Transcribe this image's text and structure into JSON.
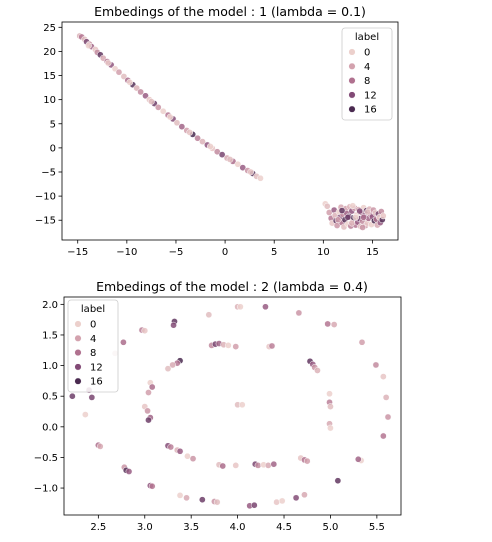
{
  "chart_data": [
    {
      "type": "scatter",
      "title": "Embedings of the model : 1 (lambda = 0.1)",
      "xlabel": "",
      "ylabel": "",
      "xlim": [
        -16.6,
        17.6
      ],
      "ylim": [
        -19.1,
        26.1
      ],
      "xticks": [
        -15,
        -10,
        -5,
        0,
        5,
        10,
        15
      ],
      "xtick_labels": [
        "−15",
        "−10",
        "−5",
        "0",
        "5",
        "10",
        "15"
      ],
      "yticks": [
        -15,
        -10,
        -5,
        0,
        5,
        10,
        15,
        20,
        25
      ],
      "ytick_labels": [
        "−15",
        "−10",
        "−5",
        "0",
        "5",
        "10",
        "15",
        "20",
        "25"
      ],
      "grid": false,
      "legend": {
        "title": "label",
        "position": "top-right",
        "entries": [
          {
            "label": "0",
            "color": "#ecd0cc"
          },
          {
            "label": "4",
            "color": "#d3a2ae"
          },
          {
            "label": "8",
            "color": "#b0718f"
          },
          {
            "label": "12",
            "color": "#824a76"
          },
          {
            "label": "16",
            "color": "#4a2a50"
          }
        ]
      },
      "hue_range": [
        0,
        19
      ],
      "points": [
        [
          -14.8,
          23.2,
          3
        ],
        [
          -14.6,
          23.0,
          9
        ],
        [
          -14.3,
          22.5,
          2
        ],
        [
          -14.1,
          22.0,
          15
        ],
        [
          -13.8,
          21.5,
          6
        ],
        [
          -13.6,
          21.0,
          11
        ],
        [
          -13.2,
          20.4,
          1
        ],
        [
          -13.0,
          19.8,
          7
        ],
        [
          -12.7,
          19.3,
          17
        ],
        [
          -12.4,
          18.6,
          4
        ],
        [
          -12.0,
          17.9,
          9
        ],
        [
          -11.6,
          17.2,
          13
        ],
        [
          -11.2,
          16.4,
          0
        ],
        [
          -10.8,
          15.7,
          5
        ],
        [
          -10.3,
          14.8,
          2
        ],
        [
          -9.9,
          14.0,
          10
        ],
        [
          -9.4,
          13.1,
          18
        ],
        [
          -9.0,
          12.4,
          3
        ],
        [
          -8.6,
          11.6,
          7
        ],
        [
          -8.1,
          10.8,
          12
        ],
        [
          -7.7,
          10.0,
          1
        ],
        [
          -7.2,
          9.2,
          16
        ],
        [
          -6.8,
          8.4,
          6
        ],
        [
          -6.3,
          7.6,
          0
        ],
        [
          -5.8,
          6.8,
          9
        ],
        [
          -5.3,
          6.0,
          14
        ],
        [
          -4.9,
          5.2,
          2
        ],
        [
          -4.4,
          4.4,
          11
        ],
        [
          -3.9,
          3.6,
          5
        ],
        [
          -3.3,
          2.8,
          19
        ],
        [
          -2.8,
          2.0,
          8
        ],
        [
          -2.3,
          1.3,
          3
        ],
        [
          -1.8,
          0.6,
          13
        ],
        [
          -1.3,
          -0.1,
          1
        ],
        [
          -0.8,
          -0.8,
          7
        ],
        [
          -0.3,
          -1.4,
          15
        ],
        [
          0.2,
          -2.1,
          4
        ],
        [
          0.8,
          -2.8,
          10
        ],
        [
          1.3,
          -3.4,
          0
        ],
        [
          1.8,
          -4.1,
          12
        ],
        [
          2.3,
          -4.7,
          6
        ],
        [
          2.8,
          -5.3,
          18
        ],
        [
          3.2,
          -5.9,
          2
        ],
        [
          3.6,
          -6.3,
          0
        ],
        [
          -13.9,
          21.2,
          0
        ],
        [
          -11.9,
          17.6,
          1
        ],
        [
          -9.7,
          13.6,
          0
        ],
        [
          -7.5,
          9.6,
          2
        ],
        [
          -5.6,
          6.4,
          0
        ],
        [
          -3.6,
          3.2,
          1
        ],
        [
          -1.5,
          0.3,
          0
        ],
        [
          0.5,
          -2.4,
          2
        ],
        [
          2.6,
          -5.0,
          1
        ],
        [
          10.2,
          -11.6,
          0
        ],
        [
          10.4,
          -12.1,
          2
        ],
        [
          10.6,
          -13.4,
          5
        ],
        [
          10.8,
          -14.6,
          9
        ],
        [
          10.9,
          -15.6,
          1
        ],
        [
          11.1,
          -12.9,
          12
        ],
        [
          11.2,
          -14.0,
          3
        ],
        [
          11.3,
          -15.1,
          17
        ],
        [
          11.4,
          -16.1,
          6
        ],
        [
          11.6,
          -13.3,
          0
        ],
        [
          11.7,
          -14.4,
          14
        ],
        [
          11.8,
          -12.3,
          4
        ],
        [
          11.9,
          -15.5,
          10
        ],
        [
          12.0,
          -13.8,
          7
        ],
        [
          12.1,
          -16.4,
          2
        ],
        [
          12.2,
          -14.9,
          18
        ],
        [
          12.3,
          -12.6,
          5
        ],
        [
          12.4,
          -13.6,
          11
        ],
        [
          12.5,
          -15.8,
          0
        ],
        [
          12.6,
          -14.2,
          15
        ],
        [
          12.7,
          -12.2,
          3
        ],
        [
          12.8,
          -16.2,
          8
        ],
        [
          12.9,
          -13.1,
          13
        ],
        [
          13.0,
          -15.0,
          1
        ],
        [
          13.1,
          -14.5,
          19
        ],
        [
          13.2,
          -12.5,
          6
        ],
        [
          13.3,
          -16.0,
          9
        ],
        [
          13.4,
          -13.9,
          0
        ],
        [
          13.5,
          -15.4,
          12
        ],
        [
          13.6,
          -12.8,
          4
        ],
        [
          13.7,
          -14.7,
          16
        ],
        [
          13.8,
          -16.3,
          2
        ],
        [
          13.9,
          -13.4,
          10
        ],
        [
          14.0,
          -15.2,
          7
        ],
        [
          14.1,
          -12.4,
          0
        ],
        [
          14.2,
          -14.1,
          14
        ],
        [
          14.3,
          -16.1,
          5
        ],
        [
          14.4,
          -13.0,
          17
        ],
        [
          14.5,
          -15.6,
          1
        ],
        [
          14.6,
          -14.6,
          11
        ],
        [
          14.7,
          -12.7,
          3
        ],
        [
          14.8,
          -13.8,
          8
        ],
        [
          14.9,
          -15.9,
          0
        ],
        [
          15.0,
          -14.3,
          13
        ],
        [
          15.1,
          -12.9,
          6
        ],
        [
          15.2,
          -15.1,
          19
        ],
        [
          15.3,
          -13.5,
          2
        ],
        [
          15.4,
          -14.8,
          9
        ],
        [
          15.5,
          -16.0,
          4
        ],
        [
          15.6,
          -13.7,
          15
        ],
        [
          15.7,
          -14.4,
          0
        ],
        [
          15.8,
          -15.5,
          12
        ],
        [
          15.9,
          -13.2,
          7
        ],
        [
          16.0,
          -14.9,
          18
        ],
        [
          16.1,
          -14.1,
          1
        ],
        [
          12.5,
          -14.4,
          16
        ],
        [
          13.3,
          -14.4,
          0
        ],
        [
          14.1,
          -14.4,
          10
        ],
        [
          11.5,
          -14.9,
          5
        ],
        [
          12.9,
          -15.6,
          3
        ],
        [
          13.7,
          -13.1,
          14
        ],
        [
          14.5,
          -13.3,
          2
        ],
        [
          11.9,
          -13.0,
          17
        ],
        [
          13.0,
          -12.0,
          0
        ],
        [
          14.0,
          -16.5,
          6
        ]
      ]
    },
    {
      "type": "scatter",
      "title": "Embedings of the model : 2 (lambda = 0.4)",
      "xlabel": "",
      "ylabel": "",
      "xlim": [
        2.13,
        5.76
      ],
      "ylim": [
        -1.44,
        2.12
      ],
      "xticks": [
        2.5,
        3.0,
        3.5,
        4.0,
        4.5,
        5.0,
        5.5
      ],
      "xtick_labels": [
        "2.5",
        "3.0",
        "3.5",
        "4.0",
        "4.5",
        "5.0",
        "5.5"
      ],
      "yticks": [
        -1.0,
        -0.5,
        0.0,
        0.5,
        1.0,
        1.5,
        2.0
      ],
      "ytick_labels": [
        "−1.0",
        "−0.5",
        "0.0",
        "0.5",
        "1.0",
        "1.5",
        "2.0"
      ],
      "grid": false,
      "legend": {
        "title": "label",
        "position": "top-left",
        "entries": [
          {
            "label": "0",
            "color": "#ecd0cc"
          },
          {
            "label": "4",
            "color": "#d3a2ae"
          },
          {
            "label": "8",
            "color": "#b0718f"
          },
          {
            "label": "12",
            "color": "#824a76"
          },
          {
            "label": "16",
            "color": "#4a2a50"
          }
        ]
      },
      "hue_range": [
        0,
        19
      ],
      "points": [
        [
          4.0,
          1.96,
          3
        ],
        [
          4.03,
          1.96,
          0
        ],
        [
          4.3,
          1.96,
          12
        ],
        [
          4.66,
          1.86,
          6
        ],
        [
          3.69,
          1.83,
          2
        ],
        [
          4.97,
          1.68,
          9
        ],
        [
          5.04,
          1.67,
          4
        ],
        [
          3.32,
          1.72,
          17
        ],
        [
          3.31,
          1.66,
          14
        ],
        [
          2.97,
          1.58,
          8
        ],
        [
          3.0,
          1.57,
          1
        ],
        [
          5.34,
          1.38,
          5
        ],
        [
          2.77,
          1.38,
          10
        ],
        [
          2.68,
          1.2,
          2
        ],
        [
          5.49,
          1.01,
          7
        ],
        [
          5.57,
          0.82,
          1
        ],
        [
          2.4,
          0.6,
          13
        ],
        [
          2.22,
          0.5,
          16
        ],
        [
          2.43,
          0.48,
          15
        ],
        [
          5.6,
          0.48,
          3
        ],
        [
          5.62,
          0.16,
          6
        ],
        [
          2.36,
          0.2,
          0
        ],
        [
          5.57,
          -0.15,
          9
        ],
        [
          2.5,
          -0.3,
          10
        ],
        [
          2.52,
          -0.32,
          4
        ],
        [
          5.33,
          -0.55,
          0
        ],
        [
          5.3,
          -0.53,
          11
        ],
        [
          2.78,
          -0.66,
          6
        ],
        [
          2.8,
          -0.71,
          18
        ],
        [
          2.83,
          -0.73,
          12
        ],
        [
          5.08,
          -0.88,
          17
        ],
        [
          3.06,
          -0.96,
          13
        ],
        [
          3.08,
          -0.97,
          9
        ],
        [
          3.38,
          -1.12,
          0
        ],
        [
          3.45,
          -1.16,
          4
        ],
        [
          3.62,
          -1.19,
          16
        ],
        [
          3.75,
          -1.22,
          6
        ],
        [
          3.78,
          -1.23,
          2
        ],
        [
          4.13,
          -1.29,
          12
        ],
        [
          4.18,
          -1.28,
          15
        ],
        [
          4.42,
          -1.23,
          1
        ],
        [
          4.48,
          -1.21,
          0
        ],
        [
          4.63,
          -1.16,
          14
        ],
        [
          4.72,
          -1.11,
          4
        ],
        [
          3.72,
          1.33,
          7
        ],
        [
          3.76,
          1.35,
          15
        ],
        [
          3.8,
          1.36,
          11
        ],
        [
          3.85,
          1.34,
          3
        ],
        [
          3.9,
          1.33,
          0
        ],
        [
          3.98,
          1.31,
          5
        ],
        [
          4.34,
          1.31,
          1
        ],
        [
          4.37,
          1.32,
          8
        ],
        [
          3.38,
          1.08,
          19
        ],
        [
          3.35,
          1.04,
          9
        ],
        [
          3.3,
          1.01,
          4
        ],
        [
          3.25,
          0.95,
          2
        ],
        [
          4.78,
          1.07,
          17
        ],
        [
          4.81,
          1.02,
          12
        ],
        [
          4.83,
          0.97,
          6
        ],
        [
          4.86,
          0.92,
          3
        ],
        [
          3.06,
          0.72,
          0
        ],
        [
          3.08,
          0.65,
          10
        ],
        [
          3.04,
          0.56,
          5
        ],
        [
          4.99,
          0.54,
          0
        ],
        [
          4.99,
          0.4,
          8
        ],
        [
          5.0,
          0.33,
          2
        ],
        [
          3.0,
          0.33,
          1
        ],
        [
          3.03,
          0.26,
          6
        ],
        [
          3.06,
          0.15,
          11
        ],
        [
          3.04,
          0.11,
          16
        ],
        [
          4.99,
          0.05,
          4
        ],
        [
          5.0,
          -0.02,
          0
        ],
        [
          3.25,
          -0.31,
          14
        ],
        [
          3.28,
          -0.33,
          8
        ],
        [
          3.35,
          -0.38,
          3
        ],
        [
          3.38,
          -0.4,
          12
        ],
        [
          4.68,
          -0.51,
          1
        ],
        [
          4.72,
          -0.54,
          9
        ],
        [
          4.75,
          -0.56,
          5
        ],
        [
          3.46,
          -0.48,
          0
        ],
        [
          3.52,
          -0.52,
          6
        ],
        [
          3.8,
          -0.62,
          2
        ],
        [
          3.84,
          -0.64,
          10
        ],
        [
          4.19,
          -0.61,
          15
        ],
        [
          4.22,
          -0.63,
          7
        ],
        [
          4.28,
          -0.62,
          0
        ],
        [
          4.33,
          -0.63,
          4
        ],
        [
          4.39,
          -0.61,
          11
        ],
        [
          3.98,
          -0.63,
          1
        ],
        [
          4.0,
          0.36,
          2
        ],
        [
          4.05,
          0.36,
          0
        ]
      ]
    }
  ]
}
